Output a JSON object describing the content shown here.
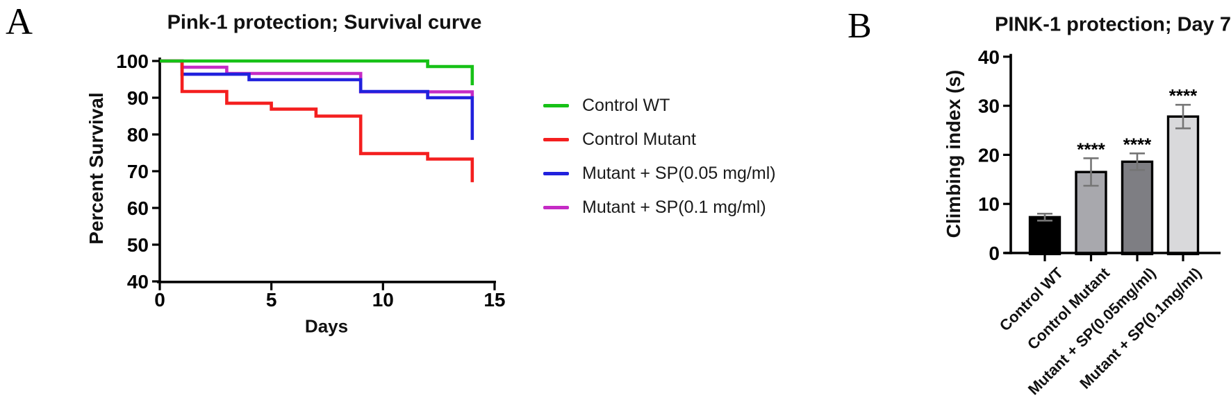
{
  "page": {
    "panel_a_label": "A",
    "panel_b_label": "B",
    "background": "#ffffff",
    "axis_color": "#000000",
    "error_bar_color": "#757575"
  },
  "chart_data": [
    {
      "panel": "A",
      "type": "line",
      "subtype": "survival-step",
      "title": "Pink-1 protection; Survival curve",
      "xlabel": "Days",
      "ylabel": "Percent Survival",
      "xlim": [
        0,
        15
      ],
      "ylim": [
        40,
        100
      ],
      "xticks": [
        0,
        5,
        10,
        15
      ],
      "yticks": [
        40,
        50,
        60,
        70,
        80,
        90,
        100
      ],
      "grid": false,
      "legend_position": "right-outside",
      "series": [
        {
          "name": "Control WT",
          "color": "#17c117",
          "points": [
            [
              0,
              100
            ],
            [
              12,
              100
            ],
            [
              12,
              98.5
            ],
            [
              14,
              98.5
            ],
            [
              14,
              93.4
            ]
          ]
        },
        {
          "name": "Control Mutant",
          "color": "#f41f1f",
          "points": [
            [
              0,
              100
            ],
            [
              1,
              100
            ],
            [
              1,
              91.7
            ],
            [
              3,
              91.7
            ],
            [
              3,
              88.5
            ],
            [
              5,
              88.5
            ],
            [
              5,
              86.9
            ],
            [
              7,
              86.9
            ],
            [
              7,
              85.0
            ],
            [
              9,
              85.0
            ],
            [
              9,
              74.8
            ],
            [
              12,
              74.8
            ],
            [
              12,
              73.3
            ],
            [
              14,
              73.3
            ],
            [
              14,
              67.0
            ]
          ]
        },
        {
          "name": "Mutant + SP(0.05 mg/ml)",
          "color": "#2121dd",
          "points": [
            [
              0,
              100
            ],
            [
              1,
              100
            ],
            [
              1,
              96.4
            ],
            [
              4,
              96.4
            ],
            [
              4,
              94.9
            ],
            [
              9,
              94.9
            ],
            [
              9,
              91.7
            ],
            [
              12,
              91.7
            ],
            [
              12,
              90.0
            ],
            [
              14,
              90.0
            ],
            [
              14,
              78.5
            ]
          ]
        },
        {
          "name": "Mutant + SP(0.1 mg/ml)",
          "color": "#c52bc5",
          "points": [
            [
              0,
              100
            ],
            [
              1,
              100
            ],
            [
              1,
              98.3
            ],
            [
              3,
              98.3
            ],
            [
              3,
              96.6
            ],
            [
              9,
              96.6
            ],
            [
              9,
              91.6
            ],
            [
              14,
              91.6
            ],
            [
              14,
              89.8
            ]
          ]
        }
      ]
    },
    {
      "panel": "B",
      "type": "bar",
      "title": "PINK-1 protection; Day 7",
      "xlabel": "",
      "ylabel": "Climbing index (s)",
      "ylim": [
        0,
        40
      ],
      "yticks": [
        0,
        10,
        20,
        30,
        40
      ],
      "grid": false,
      "categories": [
        "Control WT",
        "Control Mutant",
        "Mutant + SP(0.05mg/ml)",
        "Mutant + SP(0.1mg/ml)"
      ],
      "values": [
        7.3,
        16.5,
        18.6,
        27.8
      ],
      "errors": [
        0.7,
        2.8,
        1.7,
        2.4
      ],
      "bar_colors": [
        "#000000",
        "#a8a8ad",
        "#7e7e83",
        "#d9d9db"
      ],
      "significance": [
        "",
        "****",
        "****",
        "****"
      ]
    }
  ]
}
